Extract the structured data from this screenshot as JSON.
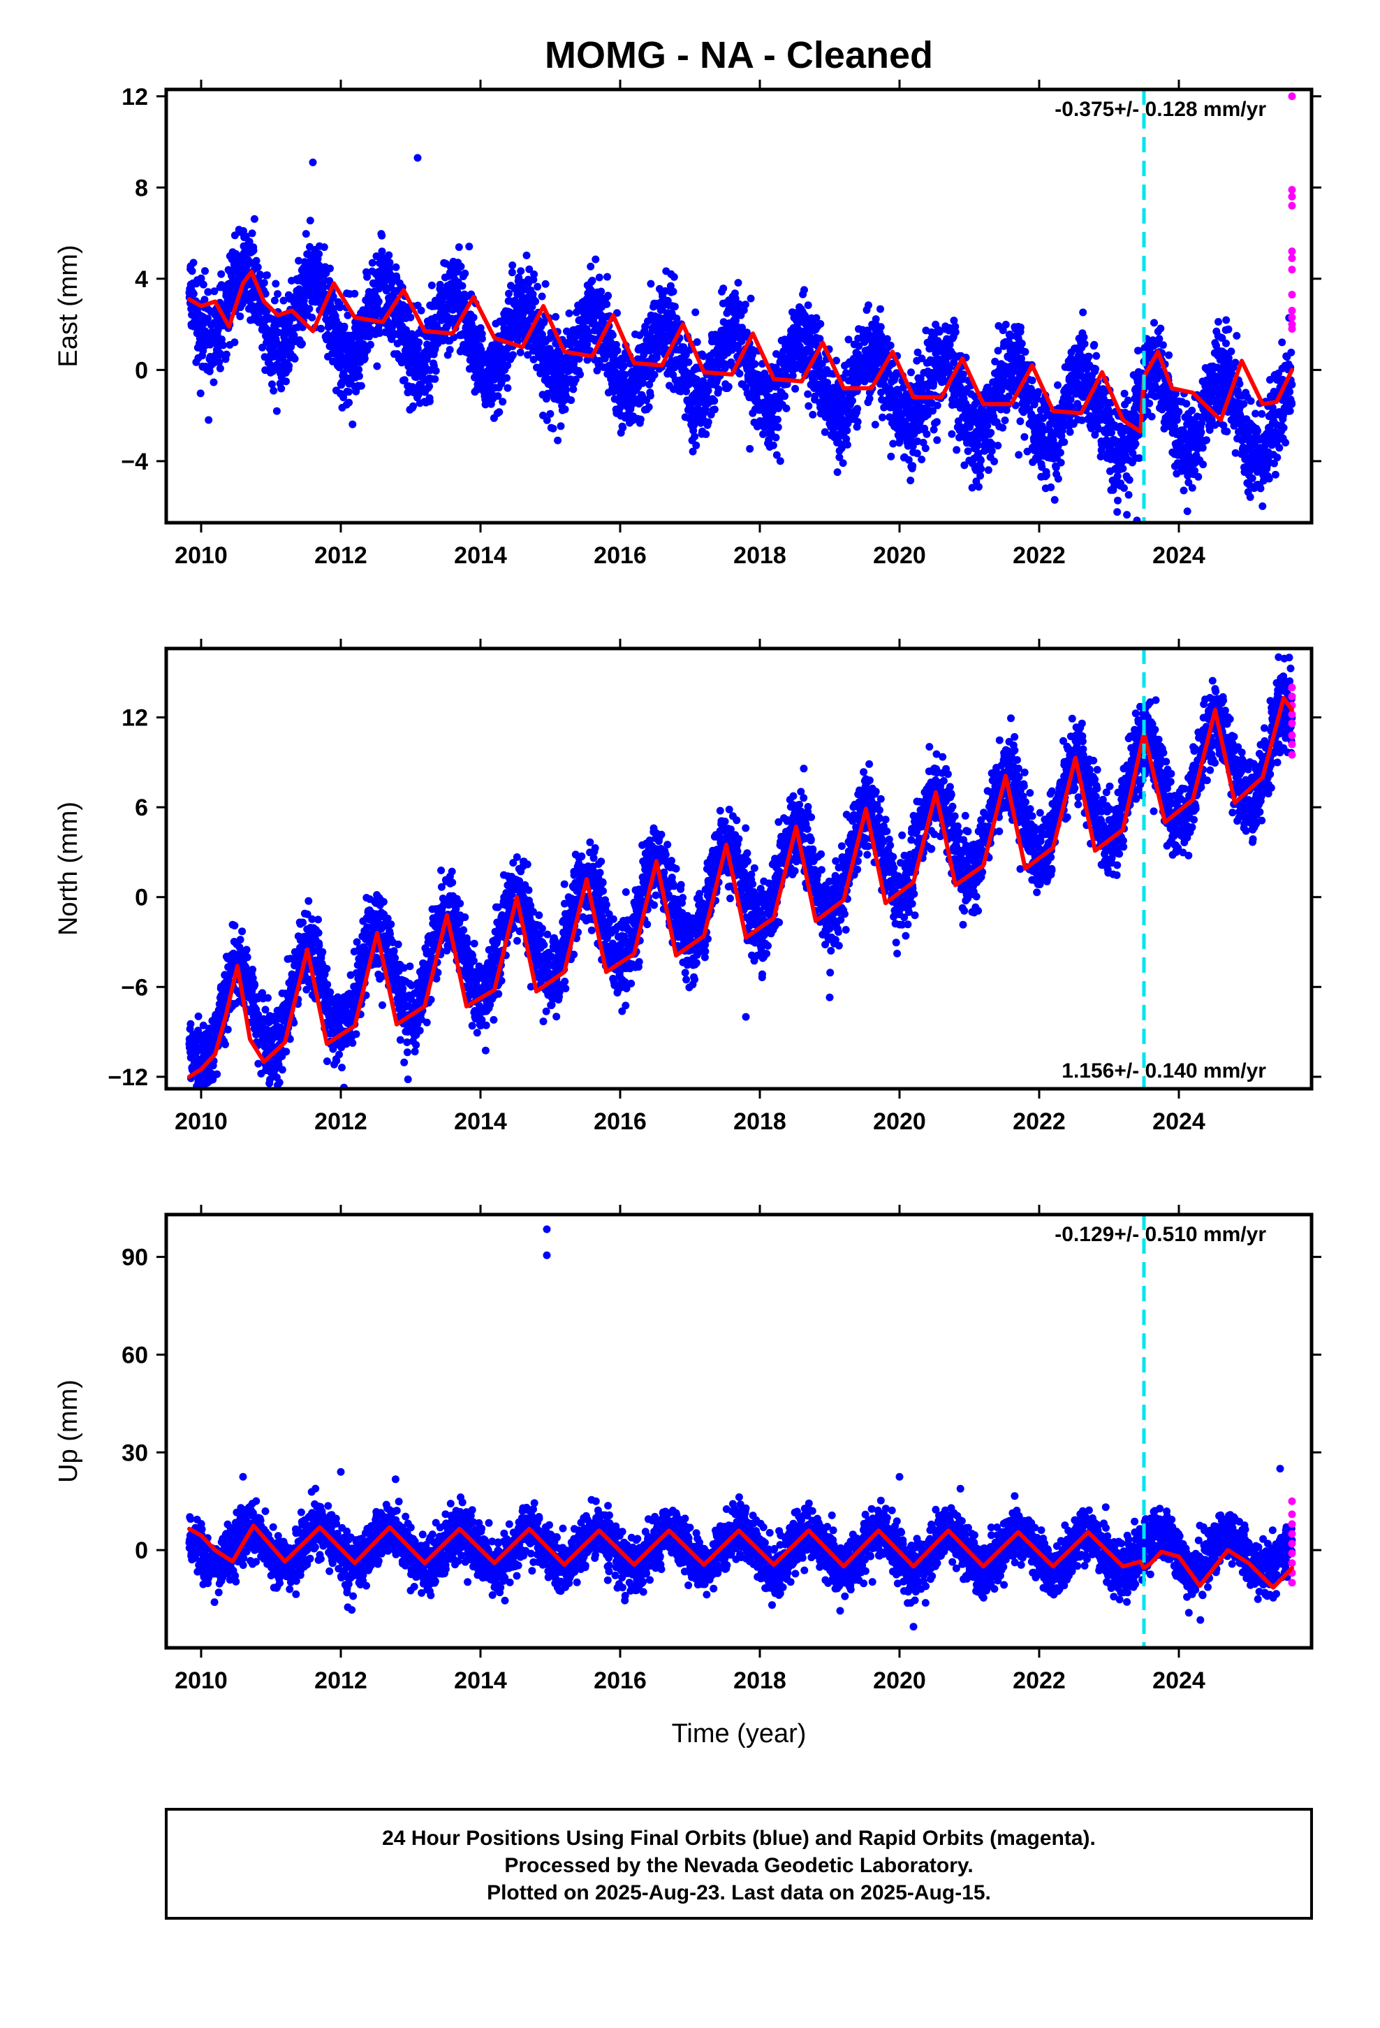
{
  "title": "MOMG  - NA - Cleaned",
  "xlabel": "Time (year)",
  "footer": {
    "line1": "24 Hour Positions Using Final Orbits (blue) and Rapid Orbits (magenta).",
    "line2": "Processed by the Nevada Geodetic Laboratory.",
    "line3": "Plotted on 2025-Aug-23. Last data on 2025-Aug-15."
  },
  "colors": {
    "final_orbits": "#0000ff",
    "rapid_orbits": "#ff00ff",
    "model": "#ff0000",
    "equipment_change": "#00e5ee"
  },
  "chart_data": [
    {
      "type": "scatter",
      "component": "east",
      "ylabel": "East (mm)",
      "rate_label": "-0.375+/- 0.128 mm/yr",
      "rate_position": "top-right",
      "xlim": [
        2009.5,
        2025.9
      ],
      "ylim": [
        -6.7,
        12.3
      ],
      "xticks": [
        2010,
        2012,
        2014,
        2016,
        2018,
        2020,
        2022,
        2024
      ],
      "yticks": [
        -4,
        0,
        4,
        8,
        12
      ],
      "ytick_labels": [
        "−4",
        "0",
        "4",
        "8",
        "12"
      ],
      "equipment_change_year": 2023.5,
      "data_start": 2009.83,
      "data_end": 2025.62,
      "trend": {
        "start": 3.0,
        "rate": -0.375
      },
      "annual_amplitude": 1.6,
      "annual_peak_year_fraction": 0.62,
      "scatter_sigma": 1.0,
      "model_curve": {
        "x": [
          2009.83,
          2010.0,
          2010.2,
          2010.4,
          2010.6,
          2010.72,
          2010.9,
          2011.1,
          2011.3,
          2011.6,
          2011.9,
          2012.2,
          2012.6,
          2012.9,
          2013.2,
          2013.6,
          2013.9,
          2014.2,
          2014.6,
          2014.9,
          2015.2,
          2015.6,
          2015.9,
          2016.2,
          2016.6,
          2016.9,
          2017.2,
          2017.6,
          2017.9,
          2018.2,
          2018.6,
          2018.9,
          2019.2,
          2019.6,
          2019.9,
          2020.2,
          2020.6,
          2020.9,
          2021.2,
          2021.6,
          2021.9,
          2022.2,
          2022.6,
          2022.9,
          2023.2,
          2023.45,
          2023.5,
          2023.7,
          2023.9,
          2024.2,
          2024.6,
          2024.9,
          2025.2,
          2025.4,
          2025.62
        ],
        "y": [
          3.1,
          2.8,
          3.0,
          1.9,
          3.8,
          4.3,
          3.0,
          2.4,
          2.6,
          1.7,
          3.8,
          2.3,
          2.1,
          3.5,
          1.7,
          1.6,
          3.2,
          1.4,
          1.0,
          2.8,
          0.8,
          0.6,
          2.4,
          0.3,
          0.2,
          2.0,
          -0.1,
          -0.2,
          1.6,
          -0.4,
          -0.5,
          1.2,
          -0.8,
          -0.8,
          0.8,
          -1.2,
          -1.2,
          0.5,
          -1.5,
          -1.5,
          0.2,
          -1.8,
          -1.9,
          -0.1,
          -2.2,
          -2.7,
          -0.3,
          0.8,
          -0.8,
          -1.0,
          -2.2,
          0.4,
          -1.5,
          -1.4,
          0.0
        ]
      },
      "outliers": [
        {
          "x": 2011.6,
          "y": 9.1
        },
        {
          "x": 2013.1,
          "y": 9.3
        },
        {
          "x": 2023.4,
          "y": -6.6
        }
      ],
      "rapid_points": [
        {
          "x": 2025.62,
          "y": 12.0
        },
        {
          "x": 2025.62,
          "y": 7.9
        },
        {
          "x": 2025.62,
          "y": 7.6
        },
        {
          "x": 2025.62,
          "y": 7.2
        },
        {
          "x": 2025.62,
          "y": 5.2
        },
        {
          "x": 2025.62,
          "y": 4.9
        },
        {
          "x": 2025.62,
          "y": 4.4
        },
        {
          "x": 2025.62,
          "y": 3.3
        },
        {
          "x": 2025.62,
          "y": 2.6
        },
        {
          "x": 2025.62,
          "y": 2.3
        },
        {
          "x": 2025.62,
          "y": 2.0
        },
        {
          "x": 2025.62,
          "y": 1.8
        }
      ]
    },
    {
      "type": "scatter",
      "component": "north",
      "ylabel": "North (mm)",
      "rate_label": "1.156+/- 0.140 mm/yr",
      "rate_position": "bottom-right",
      "xlim": [
        2009.5,
        2025.9
      ],
      "ylim": [
        -12.8,
        16.6
      ],
      "xticks": [
        2010,
        2012,
        2014,
        2016,
        2018,
        2020,
        2022,
        2024
      ],
      "yticks": [
        -12,
        -6,
        0,
        6,
        12
      ],
      "ytick_labels": [
        "−12",
        "−6",
        "0",
        "6",
        "12"
      ],
      "equipment_change_year": 2023.5,
      "data_start": 2009.83,
      "data_end": 2025.62,
      "trend": {
        "start": -8.5,
        "rate": 1.156
      },
      "annual_amplitude": 3.0,
      "annual_peak_year_fraction": 0.52,
      "scatter_sigma": 1.3,
      "model_curve": {
        "x": [
          2009.83,
          2010.0,
          2010.2,
          2010.35,
          2010.52,
          2010.7,
          2010.9,
          2011.2,
          2011.52,
          2011.8,
          2012.2,
          2012.52,
          2012.8,
          2013.2,
          2013.52,
          2013.8,
          2014.2,
          2014.52,
          2014.8,
          2015.2,
          2015.52,
          2015.8,
          2016.2,
          2016.52,
          2016.8,
          2017.2,
          2017.52,
          2017.8,
          2018.2,
          2018.52,
          2018.8,
          2019.2,
          2019.52,
          2019.8,
          2020.2,
          2020.52,
          2020.8,
          2021.2,
          2021.52,
          2021.8,
          2022.2,
          2022.52,
          2022.8,
          2023.2,
          2023.5,
          2023.8,
          2024.2,
          2024.52,
          2024.8,
          2025.2,
          2025.5,
          2025.62
        ],
        "y": [
          -12.0,
          -11.5,
          -10.5,
          -8.0,
          -4.6,
          -9.5,
          -11.0,
          -9.7,
          -3.5,
          -9.8,
          -8.6,
          -2.4,
          -8.5,
          -7.3,
          -1.2,
          -7.3,
          -6.2,
          0.0,
          -6.3,
          -5.0,
          1.2,
          -5.0,
          -3.8,
          2.4,
          -3.9,
          -2.6,
          3.5,
          -2.7,
          -1.4,
          4.7,
          -1.6,
          -0.2,
          5.9,
          -0.4,
          1.0,
          7.0,
          0.8,
          2.1,
          8.1,
          1.9,
          3.3,
          9.3,
          3.1,
          4.5,
          11.0,
          5.0,
          6.5,
          12.5,
          6.3,
          8.0,
          13.3,
          12.5
        ]
      },
      "outliers": [
        {
          "x": 2014.9,
          "y": -8.3
        },
        {
          "x": 2017.8,
          "y": -8.0
        },
        {
          "x": 2019.0,
          "y": -6.7
        },
        {
          "x": 2025.58,
          "y": 16.0
        }
      ],
      "rapid_points": [
        {
          "x": 2025.62,
          "y": 14.0
        },
        {
          "x": 2025.62,
          "y": 13.4
        },
        {
          "x": 2025.62,
          "y": 12.8
        },
        {
          "x": 2025.62,
          "y": 12.2
        },
        {
          "x": 2025.62,
          "y": 11.6
        },
        {
          "x": 2025.62,
          "y": 10.8
        },
        {
          "x": 2025.62,
          "y": 10.2
        },
        {
          "x": 2025.62,
          "y": 9.5
        }
      ]
    },
    {
      "type": "scatter",
      "component": "up",
      "ylabel": "Up (mm)",
      "rate_label": "-0.129+/- 0.510 mm/yr",
      "rate_position": "top-right",
      "xlim": [
        2009.5,
        2025.9
      ],
      "ylim": [
        -30,
        103
      ],
      "xticks": [
        2010,
        2012,
        2014,
        2016,
        2018,
        2020,
        2022,
        2024
      ],
      "yticks": [
        0,
        30,
        60,
        90
      ],
      "ytick_labels": [
        "0",
        "30",
        "60",
        "90"
      ],
      "equipment_change_year": 2023.5,
      "data_start": 2009.83,
      "data_end": 2025.62,
      "trend": {
        "start": 1.0,
        "rate": -0.129
      },
      "annual_amplitude": 5.5,
      "annual_peak_year_fraction": 0.7,
      "scatter_sigma": 4.0,
      "model_curve": {
        "x": [
          2009.83,
          2010.0,
          2010.2,
          2010.45,
          2010.75,
          2011.2,
          2011.7,
          2012.2,
          2012.7,
          2013.2,
          2013.7,
          2014.2,
          2014.7,
          2015.2,
          2015.7,
          2016.2,
          2016.7,
          2017.2,
          2017.7,
          2018.2,
          2018.7,
          2019.2,
          2019.7,
          2020.2,
          2020.7,
          2021.2,
          2021.7,
          2022.2,
          2022.7,
          2023.2,
          2023.45,
          2023.5,
          2023.6,
          2023.75,
          2024.0,
          2024.3,
          2024.7,
          2025.0,
          2025.35,
          2025.62
        ],
        "y": [
          6.5,
          4.5,
          0.0,
          -3.5,
          7.5,
          -3.5,
          7.0,
          -4.0,
          7.0,
          -4.0,
          6.5,
          -4.0,
          6.5,
          -4.5,
          6.0,
          -4.5,
          6.0,
          -4.5,
          6.0,
          -4.5,
          6.0,
          -5.0,
          6.0,
          -5.0,
          6.0,
          -5.0,
          5.5,
          -5.0,
          5.5,
          -5.0,
          -3.5,
          -5.5,
          -4.0,
          -0.5,
          -2.0,
          -11.0,
          0.0,
          -4.0,
          -11.5,
          -5.5
        ]
      },
      "outliers": [
        {
          "x": 2014.95,
          "y": 98.5
        },
        {
          "x": 2014.95,
          "y": 90.5
        },
        {
          "x": 2010.6,
          "y": 22.5
        },
        {
          "x": 2012.0,
          "y": 24.0
        },
        {
          "x": 2020.0,
          "y": 22.5
        },
        {
          "x": 2025.45,
          "y": 25.0
        },
        {
          "x": 2014.35,
          "y": -15.5
        },
        {
          "x": 2020.2,
          "y": -23.5
        }
      ],
      "rapid_points": [
        {
          "x": 2025.62,
          "y": 15.0
        },
        {
          "x": 2025.62,
          "y": 11.0
        },
        {
          "x": 2025.62,
          "y": 8.0
        },
        {
          "x": 2025.62,
          "y": 5.0
        },
        {
          "x": 2025.62,
          "y": 2.0
        },
        {
          "x": 2025.62,
          "y": -1.0
        },
        {
          "x": 2025.62,
          "y": -4.0
        },
        {
          "x": 2025.62,
          "y": -7.0
        },
        {
          "x": 2025.62,
          "y": -10.0
        }
      ]
    }
  ]
}
